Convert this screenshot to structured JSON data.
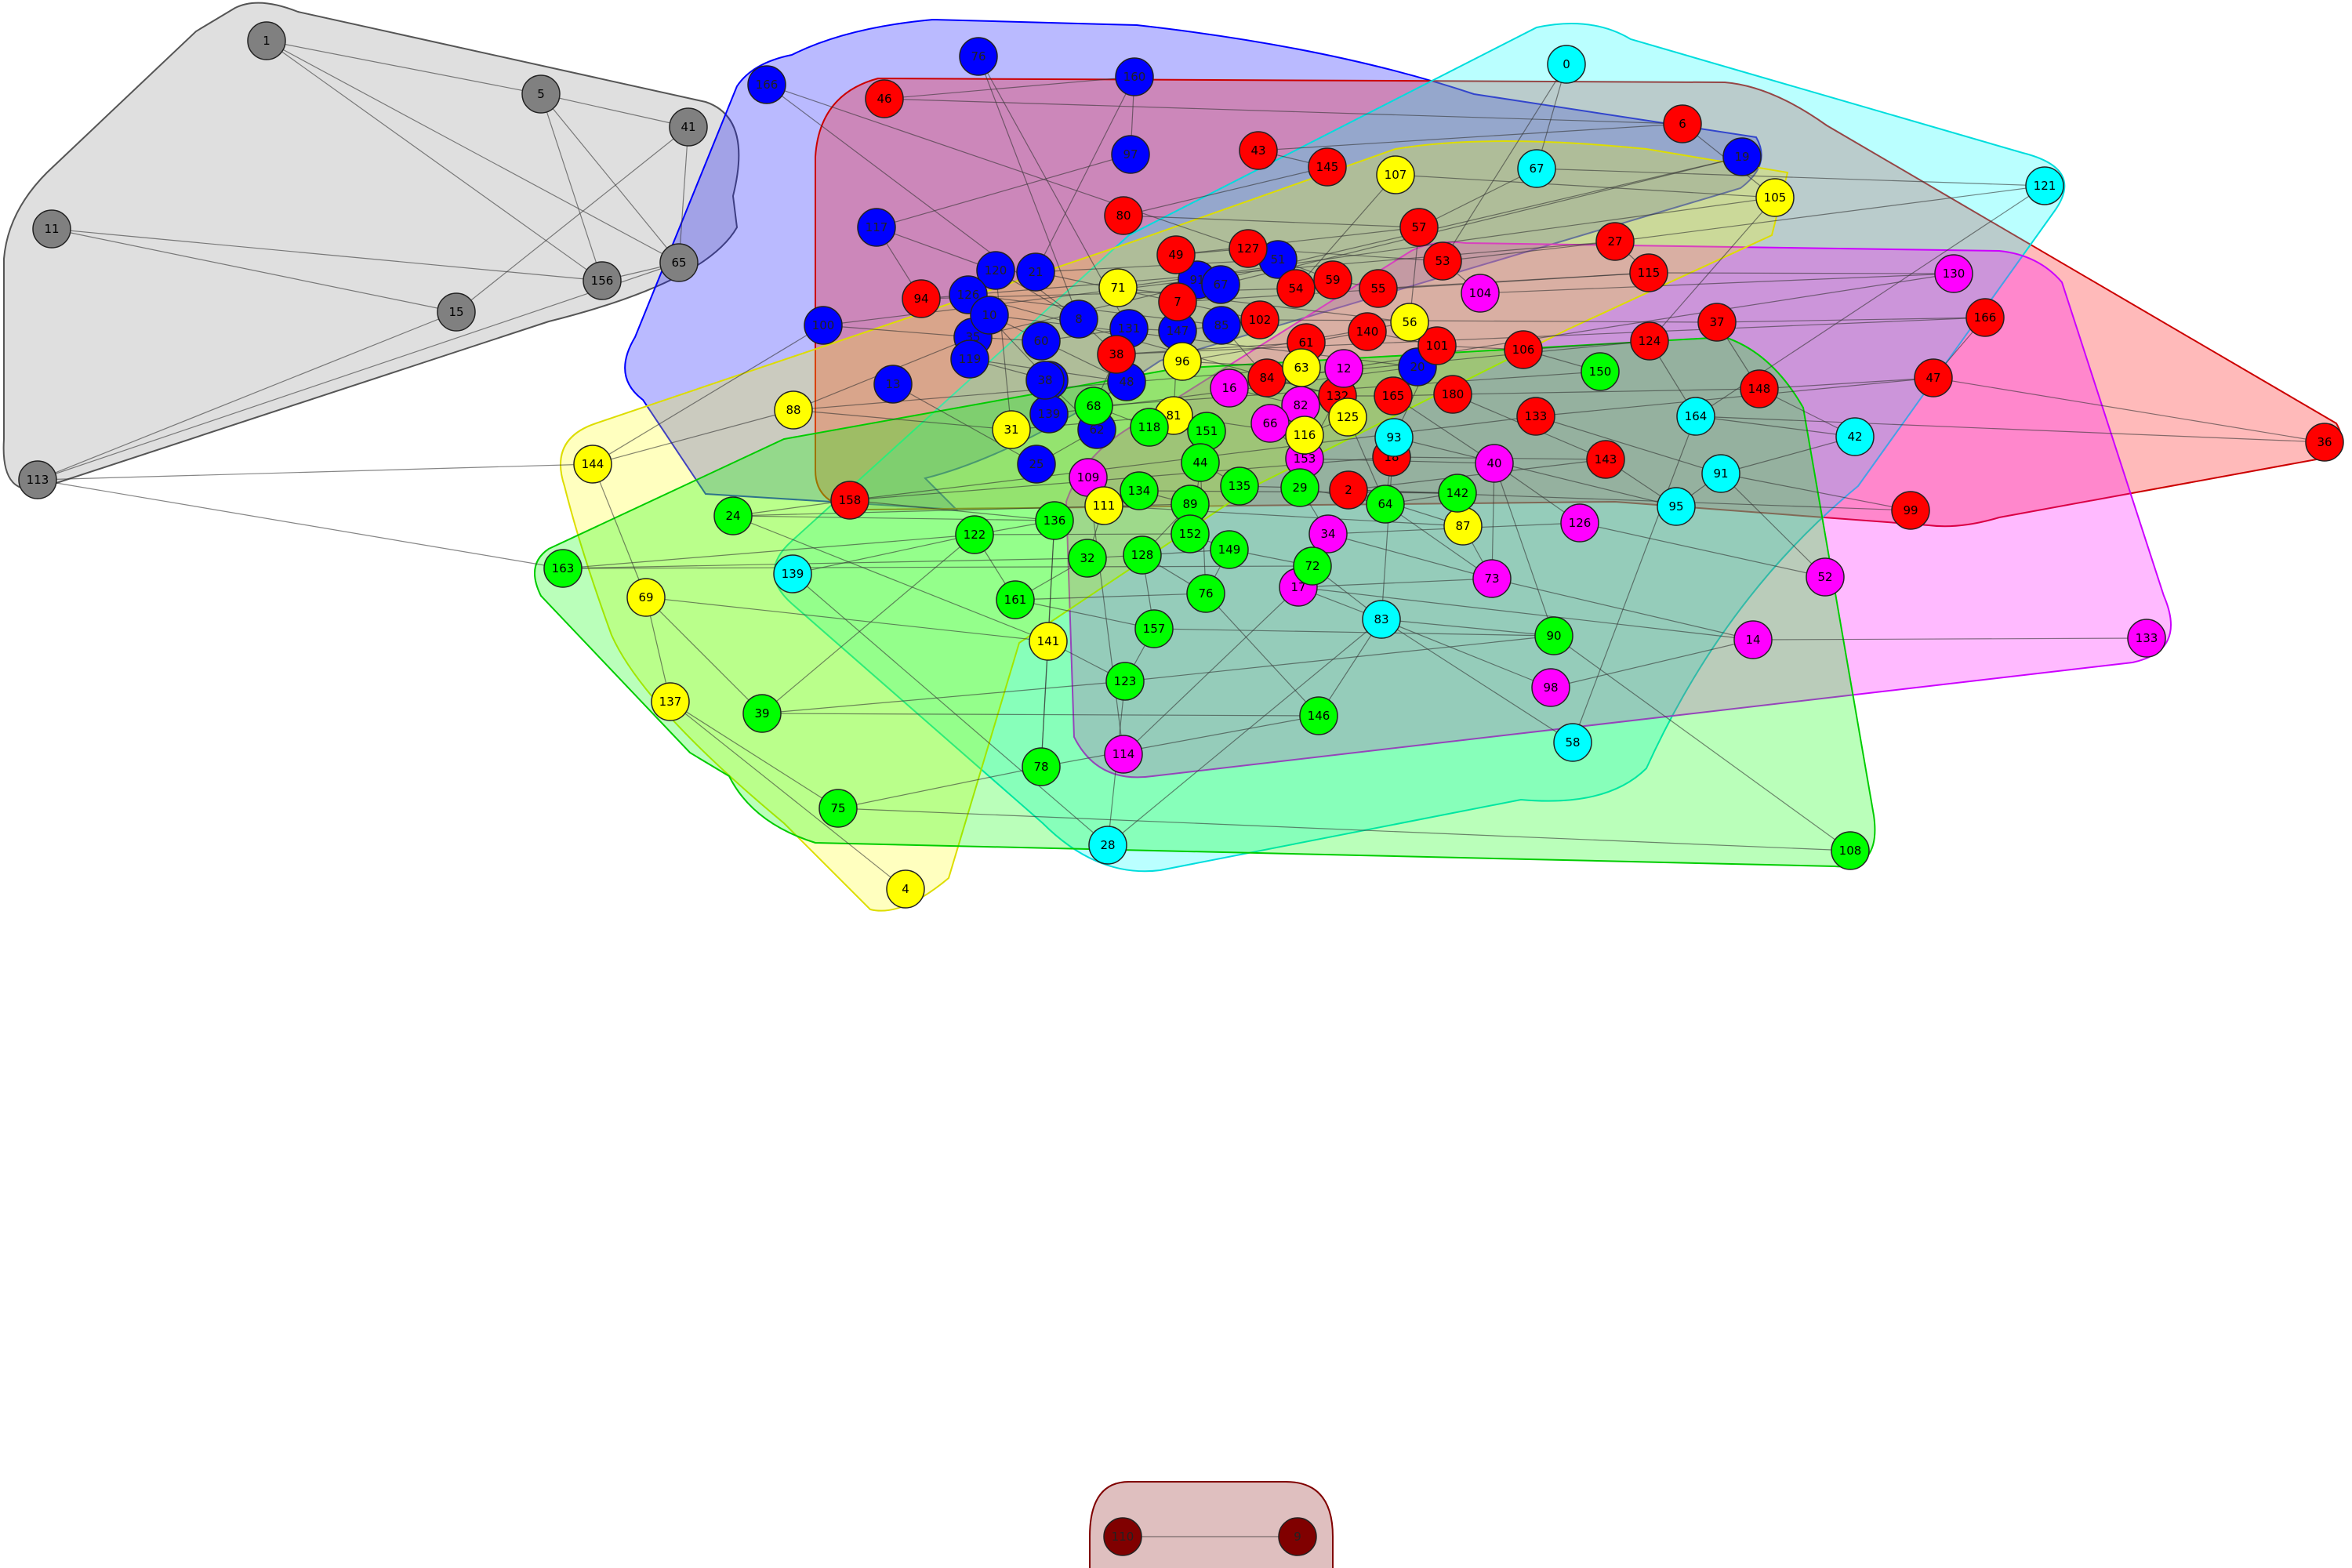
{
  "title": "",
  "clusters": [
    {
      "name": "gray",
      "fill": "#808080",
      "stroke": "#555555"
    },
    {
      "name": "blue",
      "fill": "#0000ff",
      "stroke": "#0000cc"
    },
    {
      "name": "red",
      "fill": "#ff0000",
      "stroke": "#cc0000"
    },
    {
      "name": "cyan",
      "fill": "#00ffff",
      "stroke": "#00cccc"
    },
    {
      "name": "magenta",
      "fill": "#ff00ff",
      "stroke": "#cc00cc"
    },
    {
      "name": "yellow",
      "fill": "#ffff00",
      "stroke": "#cccc00"
    },
    {
      "name": "green",
      "fill": "#00ff00",
      "stroke": "#00bb00"
    },
    {
      "name": "darkred",
      "fill": "#800000",
      "stroke": "#800000"
    }
  ],
  "nodes": [
    {
      "id": "1",
      "c": "gray"
    },
    {
      "id": "5",
      "c": "gray"
    },
    {
      "id": "41",
      "c": "gray"
    },
    {
      "id": "11",
      "c": "gray"
    },
    {
      "id": "156",
      "c": "gray"
    },
    {
      "id": "65",
      "c": "gray"
    },
    {
      "id": "15",
      "c": "gray"
    },
    {
      "id": "113",
      "c": "gray"
    },
    {
      "id": "76",
      "c": "blue"
    },
    {
      "id": "160",
      "c": "blue"
    },
    {
      "id": "166",
      "c": "blue"
    },
    {
      "id": "97",
      "c": "blue"
    },
    {
      "id": "117",
      "c": "blue"
    },
    {
      "id": "120",
      "c": "blue"
    },
    {
      "id": "21",
      "c": "blue"
    },
    {
      "id": "51",
      "c": "blue"
    },
    {
      "id": "91b",
      "label": "91",
      "c": "blue"
    },
    {
      "id": "100",
      "c": "blue"
    },
    {
      "id": "35",
      "c": "blue"
    },
    {
      "id": "8",
      "c": "blue"
    },
    {
      "id": "60",
      "c": "blue"
    },
    {
      "id": "131",
      "c": "blue"
    },
    {
      "id": "147",
      "c": "blue"
    },
    {
      "id": "85",
      "c": "blue"
    },
    {
      "id": "19",
      "c": "blue"
    },
    {
      "id": "67b",
      "label": "67",
      "c": "blue"
    },
    {
      "id": "126",
      "c": "blue"
    },
    {
      "id": "102",
      "c": "blue"
    },
    {
      "id": "119",
      "c": "blue"
    },
    {
      "id": "48",
      "c": "blue"
    },
    {
      "id": "10",
      "c": "blue"
    },
    {
      "id": "20",
      "c": "blue"
    },
    {
      "id": "139b",
      "label": "139",
      "c": "blue"
    },
    {
      "id": "38b",
      "label": "38",
      "c": "blue"
    },
    {
      "id": "62",
      "c": "blue"
    },
    {
      "id": "25",
      "c": "blue"
    },
    {
      "id": "13",
      "c": "blue"
    },
    {
      "id": "46",
      "c": "red"
    },
    {
      "id": "6",
      "c": "red"
    },
    {
      "id": "43",
      "c": "red"
    },
    {
      "id": "145",
      "c": "red"
    },
    {
      "id": "80",
      "c": "red"
    },
    {
      "id": "57",
      "c": "red"
    },
    {
      "id": "49",
      "c": "red"
    },
    {
      "id": "127",
      "c": "red"
    },
    {
      "id": "53",
      "c": "red"
    },
    {
      "id": "27",
      "c": "red"
    },
    {
      "id": "94",
      "c": "red"
    },
    {
      "id": "54",
      "c": "red"
    },
    {
      "id": "59",
      "c": "red"
    },
    {
      "id": "55",
      "c": "red"
    },
    {
      "id": "115",
      "c": "red"
    },
    {
      "id": "7",
      "c": "red"
    },
    {
      "id": "102r",
      "label": "102",
      "c": "red"
    },
    {
      "id": "37",
      "c": "red"
    },
    {
      "id": "166r",
      "label": "166",
      "c": "red"
    },
    {
      "id": "38",
      "c": "red"
    },
    {
      "id": "61",
      "c": "red"
    },
    {
      "id": "140",
      "c": "red"
    },
    {
      "id": "101",
      "c": "red"
    },
    {
      "id": "106",
      "c": "red"
    },
    {
      "id": "124",
      "c": "red"
    },
    {
      "id": "84",
      "c": "red"
    },
    {
      "id": "132",
      "c": "red"
    },
    {
      "id": "165",
      "c": "red"
    },
    {
      "id": "180",
      "c": "red"
    },
    {
      "id": "148",
      "c": "red"
    },
    {
      "id": "47",
      "c": "red"
    },
    {
      "id": "133",
      "c": "red"
    },
    {
      "id": "158",
      "c": "red"
    },
    {
      "id": "18",
      "c": "red"
    },
    {
      "id": "143",
      "c": "red"
    },
    {
      "id": "2",
      "c": "red"
    },
    {
      "id": "99",
      "c": "red"
    },
    {
      "id": "36",
      "c": "red"
    },
    {
      "id": "0",
      "c": "cyan"
    },
    {
      "id": "67",
      "c": "cyan"
    },
    {
      "id": "121",
      "c": "cyan"
    },
    {
      "id": "164",
      "c": "cyan"
    },
    {
      "id": "42",
      "c": "cyan"
    },
    {
      "id": "91",
      "c": "cyan"
    },
    {
      "id": "95",
      "c": "cyan"
    },
    {
      "id": "93",
      "c": "cyan"
    },
    {
      "id": "139",
      "c": "cyan"
    },
    {
      "id": "83",
      "c": "cyan"
    },
    {
      "id": "58",
      "c": "cyan"
    },
    {
      "id": "28",
      "c": "cyan"
    },
    {
      "id": "104",
      "c": "magenta"
    },
    {
      "id": "130",
      "c": "magenta"
    },
    {
      "id": "12",
      "c": "magenta"
    },
    {
      "id": "16",
      "c": "magenta"
    },
    {
      "id": "82",
      "c": "magenta"
    },
    {
      "id": "66",
      "c": "magenta"
    },
    {
      "id": "153",
      "c": "magenta"
    },
    {
      "id": "40",
      "c": "magenta"
    },
    {
      "id": "109",
      "c": "magenta"
    },
    {
      "id": "126m",
      "label": "126",
      "c": "magenta"
    },
    {
      "id": "34",
      "c": "magenta"
    },
    {
      "id": "52",
      "c": "magenta"
    },
    {
      "id": "73",
      "c": "magenta"
    },
    {
      "id": "17",
      "c": "magenta"
    },
    {
      "id": "14",
      "c": "magenta"
    },
    {
      "id": "133m",
      "label": "133",
      "c": "magenta"
    },
    {
      "id": "98",
      "c": "magenta"
    },
    {
      "id": "114",
      "c": "magenta"
    },
    {
      "id": "107",
      "c": "yellow"
    },
    {
      "id": "105",
      "c": "yellow"
    },
    {
      "id": "71",
      "c": "yellow"
    },
    {
      "id": "56",
      "c": "yellow"
    },
    {
      "id": "96",
      "c": "yellow"
    },
    {
      "id": "63",
      "c": "yellow"
    },
    {
      "id": "88",
      "c": "yellow"
    },
    {
      "id": "31",
      "c": "yellow"
    },
    {
      "id": "81",
      "c": "yellow"
    },
    {
      "id": "116",
      "c": "yellow"
    },
    {
      "id": "125",
      "c": "yellow"
    },
    {
      "id": "144",
      "c": "yellow"
    },
    {
      "id": "111",
      "c": "yellow"
    },
    {
      "id": "87",
      "c": "yellow"
    },
    {
      "id": "69",
      "c": "yellow"
    },
    {
      "id": "141",
      "c": "yellow"
    },
    {
      "id": "137",
      "c": "yellow"
    },
    {
      "id": "4",
      "c": "yellow"
    },
    {
      "id": "150",
      "c": "green"
    },
    {
      "id": "68",
      "c": "green"
    },
    {
      "id": "118",
      "c": "green"
    },
    {
      "id": "151",
      "c": "green"
    },
    {
      "id": "44",
      "c": "green"
    },
    {
      "id": "135",
      "c": "green"
    },
    {
      "id": "29",
      "c": "green"
    },
    {
      "id": "64",
      "c": "green"
    },
    {
      "id": "142",
      "c": "green"
    },
    {
      "id": "134",
      "c": "green"
    },
    {
      "id": "89",
      "c": "green"
    },
    {
      "id": "24",
      "c": "green"
    },
    {
      "id": "136",
      "c": "green"
    },
    {
      "id": "122",
      "c": "green"
    },
    {
      "id": "152",
      "c": "green"
    },
    {
      "id": "149",
      "c": "green"
    },
    {
      "id": "72",
      "c": "green"
    },
    {
      "id": "163",
      "c": "green"
    },
    {
      "id": "32",
      "c": "green"
    },
    {
      "id": "128",
      "c": "green"
    },
    {
      "id": "76g",
      "label": "76",
      "c": "green"
    },
    {
      "id": "161",
      "c": "green"
    },
    {
      "id": "157",
      "c": "green"
    },
    {
      "id": "90",
      "c": "green"
    },
    {
      "id": "123",
      "c": "green"
    },
    {
      "id": "39",
      "c": "green"
    },
    {
      "id": "146",
      "c": "green"
    },
    {
      "id": "78",
      "c": "green"
    },
    {
      "id": "75",
      "c": "green"
    },
    {
      "id": "108",
      "c": "green"
    },
    {
      "id": "110",
      "c": "darkred"
    },
    {
      "id": "9",
      "c": "darkred"
    }
  ],
  "edges": [
    [
      "1",
      "5"
    ],
    [
      "1",
      "65"
    ],
    [
      "1",
      "156"
    ],
    [
      "5",
      "41"
    ],
    [
      "5",
      "156"
    ],
    [
      "5",
      "65"
    ],
    [
      "41",
      "65"
    ],
    [
      "11",
      "156"
    ],
    [
      "11",
      "15"
    ],
    [
      "15",
      "113"
    ],
    [
      "113",
      "65"
    ],
    [
      "156",
      "65"
    ],
    [
      "15",
      "41"
    ],
    [
      "110",
      "9"
    ],
    [
      "76",
      "8"
    ],
    [
      "76",
      "131"
    ],
    [
      "160",
      "97"
    ],
    [
      "160",
      "21"
    ],
    [
      "166",
      "51"
    ],
    [
      "166",
      "8"
    ],
    [
      "97",
      "117"
    ],
    [
      "117",
      "120"
    ],
    [
      "120",
      "8"
    ],
    [
      "21",
      "51"
    ],
    [
      "100",
      "35"
    ],
    [
      "35",
      "60"
    ],
    [
      "60",
      "131"
    ],
    [
      "131",
      "147"
    ],
    [
      "147",
      "85"
    ],
    [
      "85",
      "126"
    ],
    [
      "19",
      "67b"
    ],
    [
      "126",
      "102"
    ],
    [
      "102",
      "119"
    ],
    [
      "119",
      "48"
    ],
    [
      "48",
      "10"
    ],
    [
      "10",
      "20"
    ],
    [
      "20",
      "139b"
    ],
    [
      "139b",
      "38b"
    ],
    [
      "38b",
      "62"
    ],
    [
      "62",
      "25"
    ],
    [
      "25",
      "13"
    ],
    [
      "91b",
      "100"
    ],
    [
      "19",
      "35"
    ],
    [
      "46",
      "6"
    ],
    [
      "6",
      "43"
    ],
    [
      "43",
      "145"
    ],
    [
      "145",
      "80"
    ],
    [
      "80",
      "57"
    ],
    [
      "57",
      "49"
    ],
    [
      "49",
      "127"
    ],
    [
      "127",
      "53"
    ],
    [
      "53",
      "27"
    ],
    [
      "27",
      "94"
    ],
    [
      "94",
      "54"
    ],
    [
      "54",
      "59"
    ],
    [
      "59",
      "55"
    ],
    [
      "55",
      "115"
    ],
    [
      "115",
      "7"
    ],
    [
      "7",
      "102r"
    ],
    [
      "102r",
      "37"
    ],
    [
      "37",
      "166r"
    ],
    [
      "166r",
      "38"
    ],
    [
      "38",
      "61"
    ],
    [
      "61",
      "140"
    ],
    [
      "140",
      "101"
    ],
    [
      "101",
      "106"
    ],
    [
      "106",
      "124"
    ],
    [
      "124",
      "84"
    ],
    [
      "84",
      "132"
    ],
    [
      "132",
      "165"
    ],
    [
      "165",
      "180"
    ],
    [
      "180",
      "148"
    ],
    [
      "148",
      "47"
    ],
    [
      "47",
      "133"
    ],
    [
      "133",
      "158"
    ],
    [
      "158",
      "18"
    ],
    [
      "18",
      "143"
    ],
    [
      "143",
      "2"
    ],
    [
      "2",
      "99"
    ],
    [
      "36",
      "164"
    ],
    [
      "36",
      "47"
    ],
    [
      "0",
      "67"
    ],
    [
      "67",
      "121"
    ],
    [
      "121",
      "164"
    ],
    [
      "164",
      "42"
    ],
    [
      "42",
      "91"
    ],
    [
      "91",
      "95"
    ],
    [
      "95",
      "93"
    ],
    [
      "93",
      "83"
    ],
    [
      "83",
      "58"
    ],
    [
      "83",
      "28"
    ],
    [
      "139",
      "28"
    ],
    [
      "139",
      "122"
    ],
    [
      "104",
      "130"
    ],
    [
      "130",
      "12"
    ],
    [
      "12",
      "16"
    ],
    [
      "16",
      "82"
    ],
    [
      "82",
      "66"
    ],
    [
      "66",
      "153"
    ],
    [
      "153",
      "40"
    ],
    [
      "40",
      "126m"
    ],
    [
      "126m",
      "34"
    ],
    [
      "34",
      "73"
    ],
    [
      "73",
      "17"
    ],
    [
      "17",
      "14"
    ],
    [
      "14",
      "133m"
    ],
    [
      "14",
      "98"
    ],
    [
      "52",
      "91"
    ],
    [
      "114",
      "17"
    ],
    [
      "109",
      "111"
    ],
    [
      "107",
      "105"
    ],
    [
      "105",
      "71"
    ],
    [
      "71",
      "56"
    ],
    [
      "56",
      "96"
    ],
    [
      "96",
      "63"
    ],
    [
      "63",
      "88"
    ],
    [
      "88",
      "31"
    ],
    [
      "31",
      "81"
    ],
    [
      "81",
      "116"
    ],
    [
      "116",
      "125"
    ],
    [
      "144",
      "88"
    ],
    [
      "144",
      "69"
    ],
    [
      "69",
      "137"
    ],
    [
      "137",
      "4"
    ],
    [
      "141",
      "78"
    ],
    [
      "111",
      "87"
    ],
    [
      "69",
      "141"
    ],
    [
      "150",
      "68"
    ],
    [
      "68",
      "118"
    ],
    [
      "118",
      "151"
    ],
    [
      "151",
      "44"
    ],
    [
      "44",
      "135"
    ],
    [
      "135",
      "29"
    ],
    [
      "29",
      "64"
    ],
    [
      "64",
      "142"
    ],
    [
      "142",
      "134"
    ],
    [
      "134",
      "89"
    ],
    [
      "89",
      "24"
    ],
    [
      "24",
      "136"
    ],
    [
      "136",
      "122"
    ],
    [
      "122",
      "152"
    ],
    [
      "152",
      "149"
    ],
    [
      "149",
      "72"
    ],
    [
      "72",
      "163"
    ],
    [
      "163",
      "32"
    ],
    [
      "32",
      "128"
    ],
    [
      "128",
      "76g"
    ],
    [
      "76g",
      "161"
    ],
    [
      "161",
      "157"
    ],
    [
      "157",
      "90"
    ],
    [
      "90",
      "123"
    ],
    [
      "123",
      "39"
    ],
    [
      "39",
      "146"
    ],
    [
      "146",
      "78"
    ],
    [
      "78",
      "75"
    ],
    [
      "75",
      "108"
    ],
    [
      "90",
      "108"
    ],
    [
      "160",
      "46"
    ],
    [
      "117",
      "94"
    ],
    [
      "21",
      "7"
    ],
    [
      "51",
      "59"
    ],
    [
      "8",
      "38"
    ],
    [
      "85",
      "84"
    ],
    [
      "126",
      "132"
    ],
    [
      "131",
      "68"
    ],
    [
      "147",
      "81"
    ],
    [
      "35",
      "88"
    ],
    [
      "100",
      "144"
    ],
    [
      "120",
      "31"
    ],
    [
      "6",
      "105"
    ],
    [
      "57",
      "56"
    ],
    [
      "53",
      "104"
    ],
    [
      "27",
      "115"
    ],
    [
      "115",
      "130"
    ],
    [
      "37",
      "148"
    ],
    [
      "166r",
      "47"
    ],
    [
      "106",
      "150"
    ],
    [
      "124",
      "164"
    ],
    [
      "101",
      "93"
    ],
    [
      "165",
      "40"
    ],
    [
      "180",
      "143"
    ],
    [
      "18",
      "64"
    ],
    [
      "2",
      "142"
    ],
    [
      "2",
      "87"
    ],
    [
      "133",
      "91"
    ],
    [
      "148",
      "42"
    ],
    [
      "143",
      "95"
    ],
    [
      "99",
      "91"
    ],
    [
      "158",
      "24"
    ],
    [
      "158",
      "136"
    ],
    [
      "84",
      "16"
    ],
    [
      "132",
      "153"
    ],
    [
      "63",
      "82"
    ],
    [
      "12",
      "125"
    ],
    [
      "116",
      "153"
    ],
    [
      "125",
      "64"
    ],
    [
      "29",
      "34"
    ],
    [
      "34",
      "72"
    ],
    [
      "64",
      "73"
    ],
    [
      "142",
      "87"
    ],
    [
      "87",
      "73"
    ],
    [
      "40",
      "73"
    ],
    [
      "40",
      "90"
    ],
    [
      "73",
      "14"
    ],
    [
      "83",
      "90"
    ],
    [
      "83",
      "146"
    ],
    [
      "72",
      "83"
    ],
    [
      "17",
      "83"
    ],
    [
      "44",
      "76g"
    ],
    [
      "151",
      "152"
    ],
    [
      "89",
      "128"
    ],
    [
      "134",
      "111"
    ],
    [
      "111",
      "32"
    ],
    [
      "32",
      "161"
    ],
    [
      "161",
      "122"
    ],
    [
      "136",
      "141"
    ],
    [
      "141",
      "123"
    ],
    [
      "123",
      "157"
    ],
    [
      "157",
      "128"
    ],
    [
      "128",
      "149"
    ],
    [
      "149",
      "76g"
    ],
    [
      "76g",
      "146"
    ],
    [
      "109",
      "114"
    ],
    [
      "136",
      "78"
    ],
    [
      "122",
      "39"
    ],
    [
      "163",
      "122"
    ],
    [
      "24",
      "141"
    ],
    [
      "144",
      "113"
    ],
    [
      "163",
      "113"
    ],
    [
      "69",
      "39"
    ],
    [
      "137",
      "75"
    ],
    [
      "28",
      "123"
    ],
    [
      "58",
      "164"
    ],
    [
      "98",
      "83"
    ],
    [
      "52",
      "126m"
    ],
    [
      "105",
      "124"
    ],
    [
      "107",
      "54"
    ],
    [
      "0",
      "53"
    ],
    [
      "67",
      "57"
    ],
    [
      "121",
      "27"
    ],
    [
      "45",
      "36"
    ]
  ]
}
